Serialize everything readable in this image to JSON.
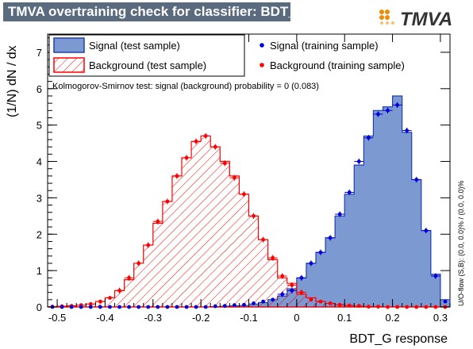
{
  "title": "TMVA overtraining check for classifier: BDT_G",
  "logo_text": "TMVA",
  "ks_text": "Kolmogorov-Smirnov test: signal (background) probability =     0 (0.083)",
  "side_text": "U/O-flow (S,B): (0.0, 0.0)% / (0.0, 0.0)%",
  "colors": {
    "signal_fill": "#7d99d1",
    "signal_line": "#1f3fb0",
    "signal_points": "#0000dd",
    "background_hatch": "#ff0000",
    "background_points": "#ff0000",
    "title_bg": "#5a6b80",
    "logo_orange": "#f08a00"
  },
  "chart_data": {
    "type": "histogram",
    "xlabel": "BDT_G response",
    "ylabel": "(1/N) dN / dx",
    "xlim": [
      -0.52,
      0.32
    ],
    "ylim": [
      0,
      7.5
    ],
    "x_ticks": [
      -0.5,
      -0.4,
      -0.3,
      -0.2,
      -0.1,
      0,
      0.1,
      0.2,
      0.3
    ],
    "x_tick_labels": [
      "-0.5",
      "-0.4",
      "-0.3",
      "-0.2",
      "-0.1",
      "0",
      "0.1",
      "0.2",
      "0.3"
    ],
    "y_ticks": [
      0,
      1,
      2,
      3,
      4,
      5,
      6,
      7
    ],
    "y_tick_labels": [
      "0",
      "1",
      "2",
      "3",
      "4",
      "5",
      "6",
      "7"
    ],
    "bin_edges": [
      -0.52,
      -0.5,
      -0.48,
      -0.46,
      -0.44,
      -0.42,
      -0.4,
      -0.38,
      -0.36,
      -0.34,
      -0.32,
      -0.3,
      -0.28,
      -0.26,
      -0.24,
      -0.22,
      -0.2,
      -0.18,
      -0.16,
      -0.14,
      -0.12,
      -0.1,
      -0.08,
      -0.06,
      -0.04,
      -0.02,
      0.0,
      0.02,
      0.04,
      0.06,
      0.08,
      0.1,
      0.12,
      0.14,
      0.16,
      0.18,
      0.2,
      0.22,
      0.24,
      0.26,
      0.28,
      0.3,
      0.32
    ],
    "legend": {
      "placement": "top",
      "entries": [
        "Signal (test sample)",
        "Signal (training sample)",
        "Background (test sample)",
        "Background (training sample)"
      ]
    },
    "series": [
      {
        "name": "Signal (test sample)",
        "style": "filled-histogram",
        "values": [
          0,
          0,
          0,
          0,
          0,
          0,
          0,
          0,
          0,
          0,
          0,
          0,
          0,
          0,
          0,
          0,
          0,
          0.01,
          0.02,
          0.03,
          0.04,
          0.08,
          0.12,
          0.2,
          0.3,
          0.5,
          0.8,
          1.2,
          1.5,
          1.9,
          2.5,
          3.1,
          3.9,
          4.7,
          5.4,
          5.5,
          5.8,
          4.8,
          3.5,
          2.1,
          0.9,
          0.2
        ]
      },
      {
        "name": "Background (test sample)",
        "style": "hatched-histogram",
        "values": [
          0.01,
          0.02,
          0.03,
          0.05,
          0.08,
          0.15,
          0.25,
          0.45,
          0.75,
          1.2,
          1.7,
          2.3,
          2.9,
          3.6,
          4.1,
          4.55,
          4.7,
          4.4,
          4.0,
          3.6,
          3.1,
          2.5,
          1.85,
          1.3,
          0.8,
          0.65,
          0.35,
          0.25,
          0.15,
          0.1,
          0.06,
          0.04,
          0.02,
          0.01,
          0.01,
          0,
          0,
          0,
          0,
          0,
          0,
          0
        ]
      },
      {
        "name": "Signal (training sample)",
        "style": "points",
        "values": [
          0,
          0,
          0,
          0,
          0,
          0,
          0,
          0,
          0,
          0,
          0,
          0,
          0,
          0,
          0,
          0,
          0,
          0.02,
          0.03,
          0.05,
          0.06,
          0.1,
          0.15,
          0.2,
          0.35,
          0.45,
          0.8,
          1.2,
          1.5,
          1.9,
          2.55,
          3.15,
          4.0,
          4.65,
          5.3,
          5.4,
          5.55,
          4.85,
          3.5,
          2.1,
          0.85,
          0.15
        ]
      },
      {
        "name": "Background (training sample)",
        "style": "points",
        "values": [
          0.01,
          0.02,
          0.03,
          0.05,
          0.08,
          0.15,
          0.25,
          0.45,
          0.8,
          1.2,
          1.7,
          2.35,
          2.9,
          3.6,
          4.1,
          4.55,
          4.7,
          4.4,
          3.95,
          3.55,
          3.1,
          2.5,
          1.85,
          1.35,
          0.85,
          0.6,
          0.4,
          0.2,
          0.15,
          0.1,
          0.06,
          0.04,
          0.03,
          0.01,
          0.01,
          0,
          0,
          0,
          0,
          0,
          0,
          0
        ]
      }
    ]
  }
}
